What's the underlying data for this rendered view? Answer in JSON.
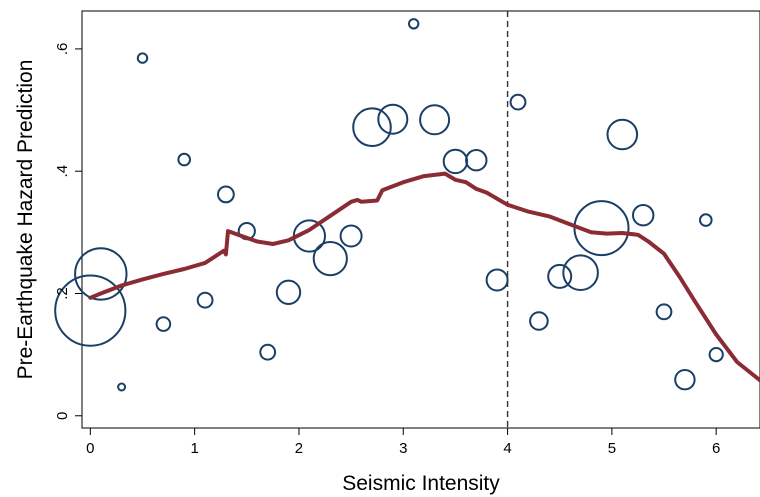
{
  "chart_data": {
    "type": "scatter",
    "title": "",
    "xlabel": "Seismic Intensity",
    "ylabel": "Pre-Earthquake Hazard Prediction",
    "xlim": [
      -0.08,
      6.42
    ],
    "ylim": [
      -0.02,
      0.662
    ],
    "xticks": [
      0,
      1,
      2,
      3,
      4,
      5,
      6
    ],
    "xtick_labels": [
      "0",
      "1",
      "2",
      "3",
      "4",
      "5",
      "6"
    ],
    "yticks": [
      0,
      0.2,
      0.4,
      0.6
    ],
    "ytick_labels": [
      "0",
      ".2",
      ".4",
      ".6"
    ],
    "grid": false,
    "reference_line": {
      "axis": "x",
      "value": 4,
      "style": "dashed",
      "color": "#333333"
    },
    "colors": {
      "markers": "#1a3f66",
      "fit_line": "#8b2b33"
    },
    "series": [
      {
        "kind": "weighted-scatter",
        "points": [
          {
            "x": 0.0,
            "y": 0.172,
            "w": 11.2
          },
          {
            "x": 0.1,
            "y": 0.232,
            "w": 6.0
          },
          {
            "x": 0.3,
            "y": 0.047,
            "w": 0.04
          },
          {
            "x": 0.5,
            "y": 0.585,
            "w": 0.2
          },
          {
            "x": 0.7,
            "y": 0.15,
            "w": 0.42
          },
          {
            "x": 0.9,
            "y": 0.419,
            "w": 0.3
          },
          {
            "x": 1.1,
            "y": 0.189,
            "w": 0.5
          },
          {
            "x": 1.3,
            "y": 0.362,
            "w": 0.57
          },
          {
            "x": 1.5,
            "y": 0.302,
            "w": 0.6
          },
          {
            "x": 1.7,
            "y": 0.104,
            "w": 0.5
          },
          {
            "x": 1.9,
            "y": 0.202,
            "w": 1.25
          },
          {
            "x": 2.1,
            "y": 0.294,
            "w": 2.2
          },
          {
            "x": 2.3,
            "y": 0.257,
            "w": 2.5
          },
          {
            "x": 2.5,
            "y": 0.294,
            "w": 1.0
          },
          {
            "x": 2.7,
            "y": 0.472,
            "w": 3.2
          },
          {
            "x": 2.9,
            "y": 0.485,
            "w": 1.9
          },
          {
            "x": 3.1,
            "y": 0.641,
            "w": 0.2
          },
          {
            "x": 3.3,
            "y": 0.484,
            "w": 1.9
          },
          {
            "x": 3.5,
            "y": 0.416,
            "w": 1.25
          },
          {
            "x": 3.7,
            "y": 0.418,
            "w": 0.95
          },
          {
            "x": 3.9,
            "y": 0.222,
            "w": 1.0
          },
          {
            "x": 4.1,
            "y": 0.513,
            "w": 0.5
          },
          {
            "x": 4.3,
            "y": 0.155,
            "w": 0.7
          },
          {
            "x": 4.5,
            "y": 0.228,
            "w": 1.2
          },
          {
            "x": 4.7,
            "y": 0.234,
            "w": 2.7
          },
          {
            "x": 4.9,
            "y": 0.307,
            "w": 6.6
          },
          {
            "x": 5.1,
            "y": 0.46,
            "w": 2.0
          },
          {
            "x": 5.3,
            "y": 0.328,
            "w": 0.95
          },
          {
            "x": 5.5,
            "y": 0.17,
            "w": 0.5
          },
          {
            "x": 5.7,
            "y": 0.059,
            "w": 0.85
          },
          {
            "x": 5.9,
            "y": 0.32,
            "w": 0.3
          },
          {
            "x": 6.0,
            "y": 0.1,
            "w": 0.4
          }
        ]
      },
      {
        "kind": "fit-line",
        "points": [
          [
            0.0,
            0.193
          ],
          [
            0.1,
            0.2
          ],
          [
            0.3,
            0.213
          ],
          [
            0.5,
            0.223
          ],
          [
            0.7,
            0.232
          ],
          [
            0.9,
            0.24
          ],
          [
            1.1,
            0.25
          ],
          [
            1.28,
            0.27
          ],
          [
            1.3,
            0.264
          ],
          [
            1.32,
            0.302
          ],
          [
            1.45,
            0.294
          ],
          [
            1.6,
            0.285
          ],
          [
            1.75,
            0.281
          ],
          [
            1.9,
            0.287
          ],
          [
            2.1,
            0.304
          ],
          [
            2.3,
            0.327
          ],
          [
            2.5,
            0.35
          ],
          [
            2.56,
            0.353
          ],
          [
            2.6,
            0.35
          ],
          [
            2.75,
            0.352
          ],
          [
            2.8,
            0.369
          ],
          [
            3.0,
            0.382
          ],
          [
            3.2,
            0.392
          ],
          [
            3.4,
            0.396
          ],
          [
            3.5,
            0.386
          ],
          [
            3.6,
            0.382
          ],
          [
            3.7,
            0.371
          ],
          [
            3.8,
            0.365
          ],
          [
            4.0,
            0.345
          ],
          [
            4.2,
            0.334
          ],
          [
            4.4,
            0.326
          ],
          [
            4.6,
            0.313
          ],
          [
            4.8,
            0.3
          ],
          [
            4.95,
            0.298
          ],
          [
            5.1,
            0.299
          ],
          [
            5.25,
            0.296
          ],
          [
            5.35,
            0.285
          ],
          [
            5.5,
            0.265
          ],
          [
            5.65,
            0.227
          ],
          [
            5.8,
            0.186
          ],
          [
            6.0,
            0.133
          ],
          [
            6.2,
            0.088
          ],
          [
            6.42,
            0.058
          ]
        ]
      }
    ]
  }
}
